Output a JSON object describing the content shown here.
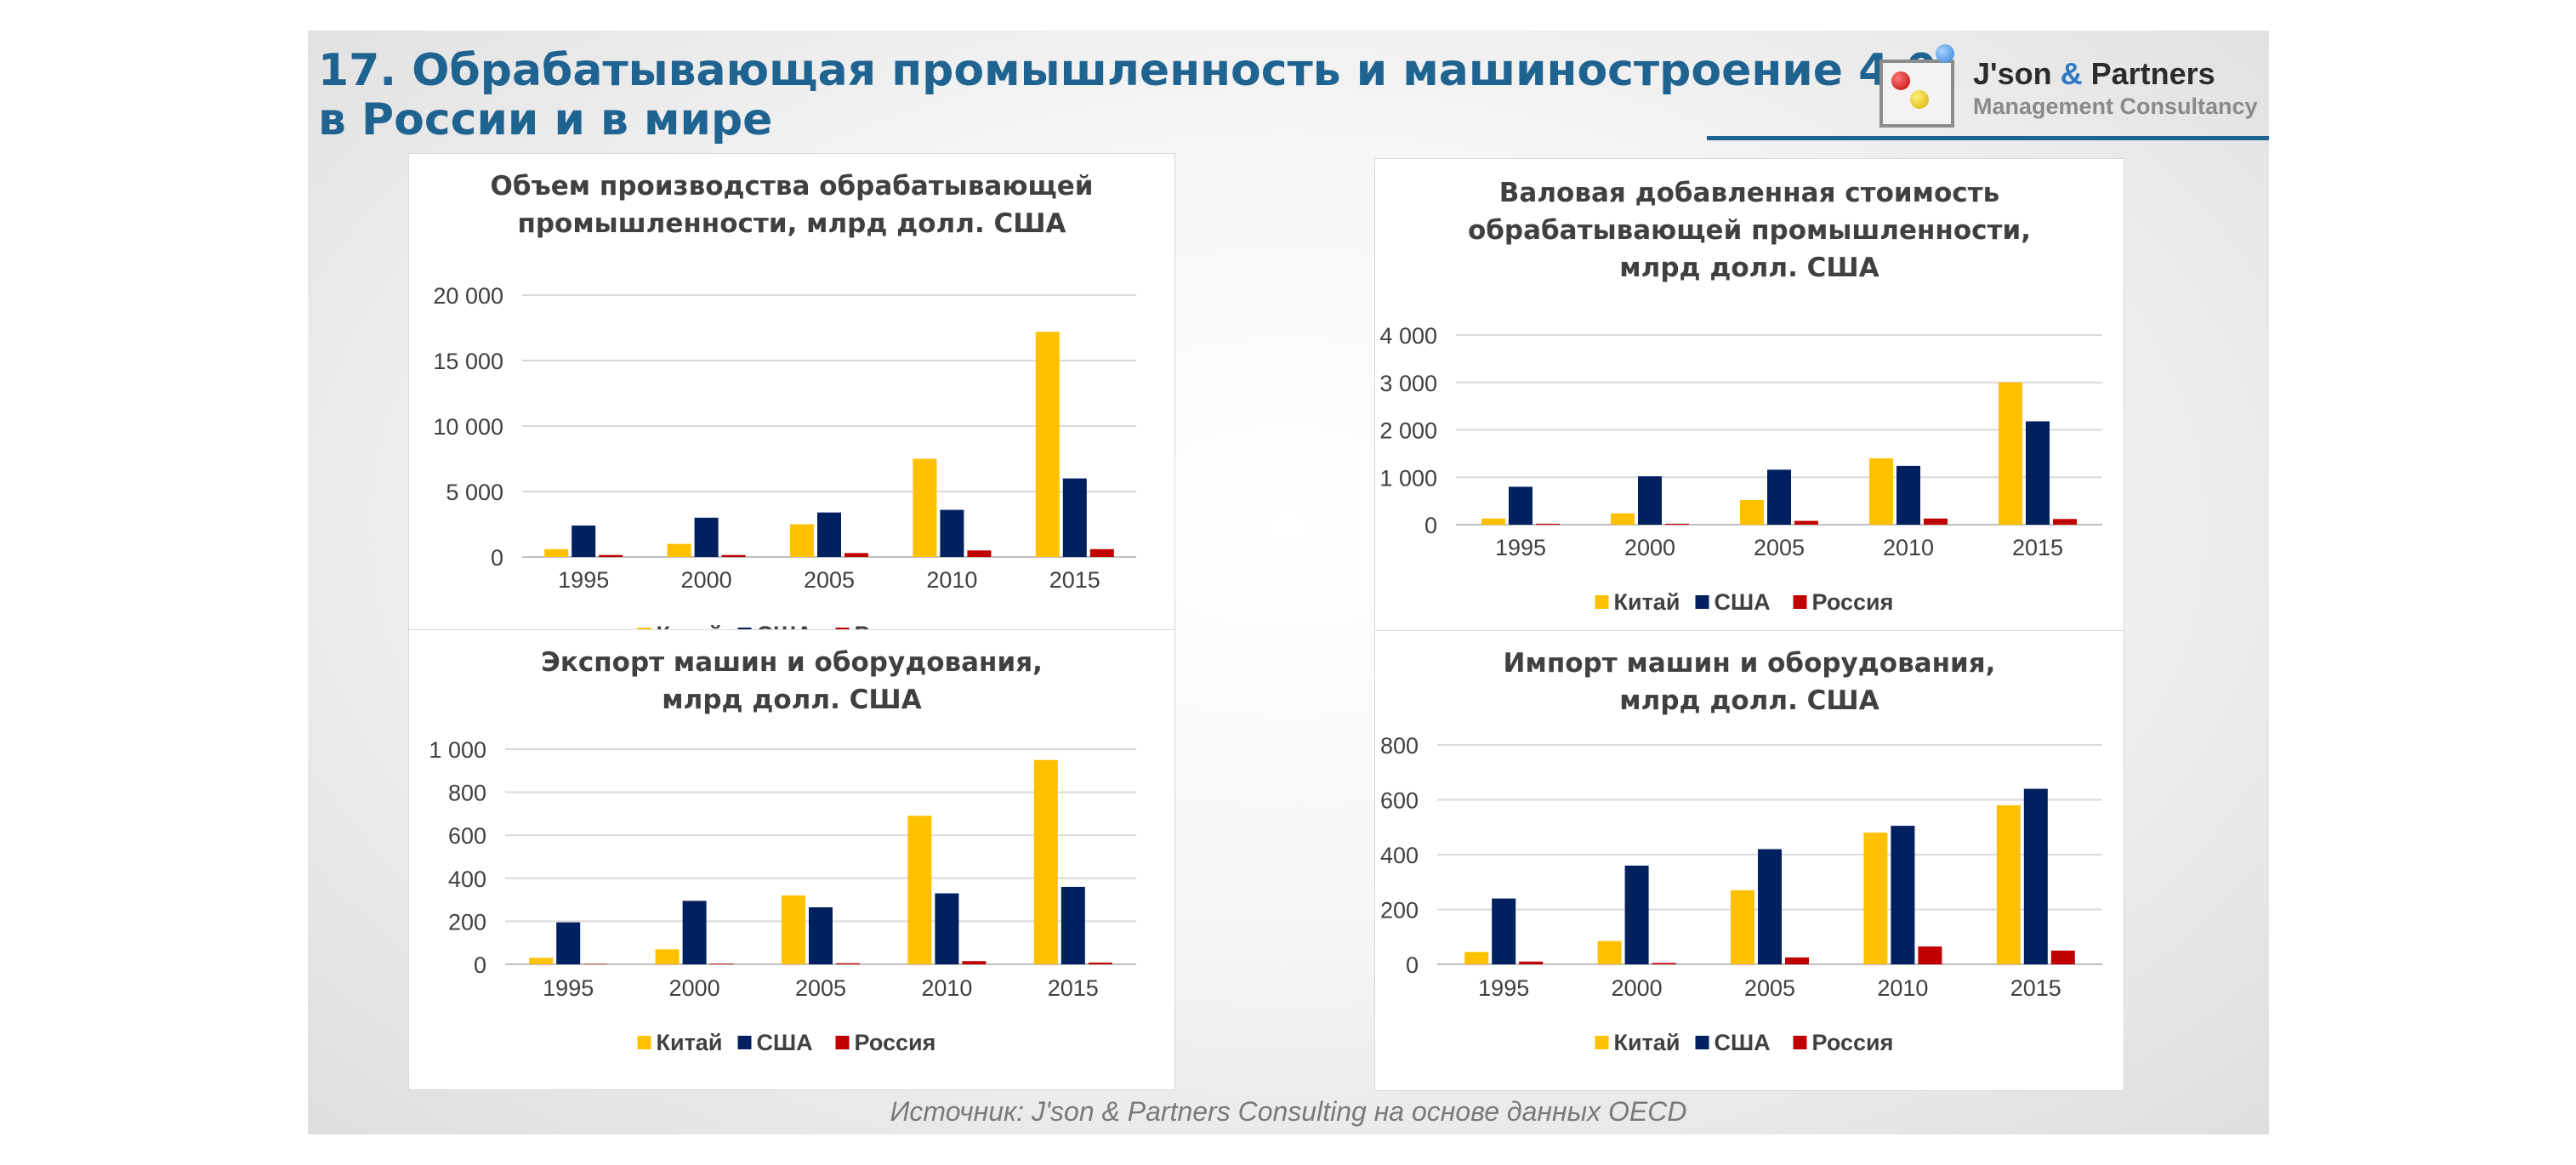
{
  "slide": {
    "title_line1": "17. Обрабатывающая промышленность и машиностроение 4.0",
    "title_line2": "в России и в мире",
    "logo_name_main": "J'son ",
    "logo_name_amp": "&",
    "logo_name_end": " Partners",
    "logo_subtitle": "Management Consultancy",
    "source": "Источник: J'son & Partners Consulting на основе данных OECD"
  },
  "colors": {
    "china": "#FFC000",
    "usa": "#002060",
    "russia": "#C00000",
    "gridline": "#d9d9d9",
    "text": "#404040",
    "title": "#1f6391"
  },
  "chart_data": [
    {
      "type": "bar",
      "title": [
        "Объем производства обрабатывающей",
        "промышленности, млрд долл. США"
      ],
      "categories": [
        "1995",
        "2000",
        "2005",
        "2010",
        "2015"
      ],
      "series": [
        {
          "name": "Китай",
          "values": [
            600,
            1000,
            2500,
            7500,
            17200
          ]
        },
        {
          "name": "США",
          "values": [
            2400,
            3000,
            3400,
            3600,
            6000
          ]
        },
        {
          "name": "Россия",
          "values": [
            150,
            150,
            300,
            500,
            600
          ]
        }
      ],
      "ylim": [
        0,
        20000
      ],
      "yticks": [
        0,
        5000,
        10000,
        15000,
        20000
      ],
      "ytick_labels": [
        "0",
        "5 000",
        "10 000",
        "15 000",
        "20 000"
      ],
      "legend": "bottom"
    },
    {
      "type": "bar",
      "title": [
        "Валовая добавленная стоимость",
        "обрабатывающей промышленности,",
        "млрд долл. США"
      ],
      "categories": [
        "1995",
        "2000",
        "2005",
        "2010",
        "2015"
      ],
      "series": [
        {
          "name": "Китай",
          "values": [
            130,
            240,
            520,
            1400,
            3000
          ]
        },
        {
          "name": "США",
          "values": [
            800,
            1020,
            1160,
            1240,
            2180
          ]
        },
        {
          "name": "Россия",
          "values": [
            20,
            20,
            80,
            130,
            120
          ]
        }
      ],
      "ylim": [
        0,
        4000
      ],
      "yticks": [
        0,
        1000,
        2000,
        3000,
        4000
      ],
      "ytick_labels": [
        "0",
        "1 000",
        "2 000",
        "3 000",
        "4 000"
      ],
      "legend": "bottom"
    },
    {
      "type": "bar",
      "title": [
        "Экспорт машин и оборудования,",
        "млрд долл. США"
      ],
      "categories": [
        "1995",
        "2000",
        "2005",
        "2010",
        "2015"
      ],
      "series": [
        {
          "name": "Китай",
          "values": [
            30,
            70,
            320,
            690,
            950
          ]
        },
        {
          "name": "США",
          "values": [
            195,
            295,
            265,
            330,
            360
          ]
        },
        {
          "name": "Россия",
          "values": [
            2,
            3,
            5,
            15,
            8
          ]
        }
      ],
      "ylim": [
        0,
        1000
      ],
      "yticks": [
        0,
        200,
        400,
        600,
        800,
        1000
      ],
      "ytick_labels": [
        "0",
        "200",
        "400",
        "600",
        "800",
        "1 000"
      ],
      "legend": "bottom"
    },
    {
      "type": "bar",
      "title": [
        "Импорт машин и оборудования,",
        "млрд долл. США"
      ],
      "categories": [
        "1995",
        "2000",
        "2005",
        "2010",
        "2015"
      ],
      "series": [
        {
          "name": "Китай",
          "values": [
            45,
            85,
            270,
            480,
            580
          ]
        },
        {
          "name": "США",
          "values": [
            240,
            360,
            420,
            505,
            640
          ]
        },
        {
          "name": "Россия",
          "values": [
            10,
            5,
            25,
            65,
            50
          ]
        }
      ],
      "ylim": [
        0,
        800
      ],
      "yticks": [
        0,
        200,
        400,
        600,
        800
      ],
      "ytick_labels": [
        "0",
        "200",
        "400",
        "600",
        "800"
      ],
      "legend": "bottom"
    }
  ]
}
